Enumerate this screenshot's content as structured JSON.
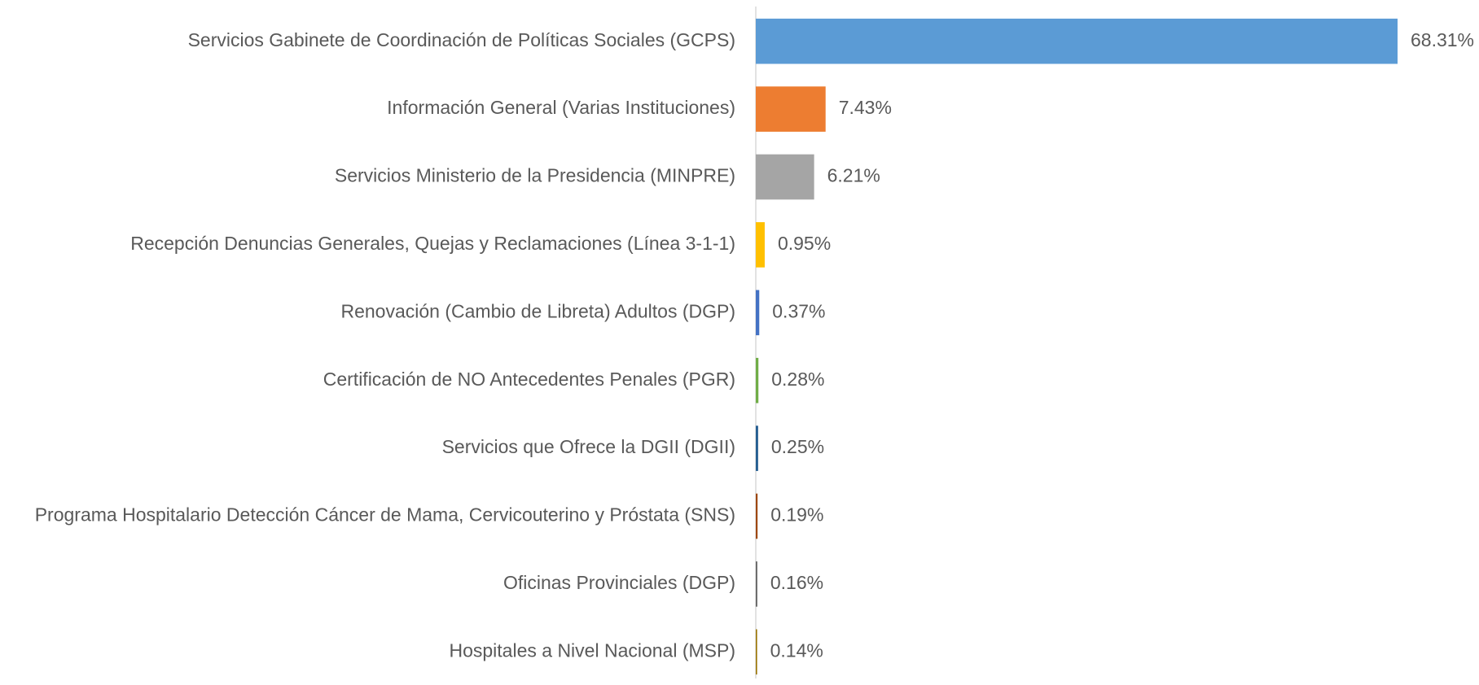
{
  "chart_data": {
    "type": "hbar",
    "categories": [
      "Servicios Gabinete de Coordinación de Políticas Sociales (GCPS)",
      "Información General (Varias Instituciones)",
      "Servicios Ministerio de la Presidencia (MINPRE)",
      "Recepción Denuncias Generales, Quejas y Reclamaciones (Línea 3-1-1)",
      "Renovación (Cambio de Libreta) Adultos (DGP)",
      "Certificación de NO Antecedentes Penales (PGR)",
      "Servicios que Ofrece la DGII (DGII)",
      "Programa Hospitalario Detección Cáncer de Mama, Cervicouterino y Próstata (SNS)",
      "Oficinas Provinciales (DGP)",
      "Hospitales a Nivel Nacional (MSP)"
    ],
    "values": [
      68.31,
      7.43,
      6.21,
      0.95,
      0.37,
      0.28,
      0.25,
      0.19,
      0.16,
      0.14
    ],
    "value_labels": [
      "68.31%",
      "7.43%",
      "6.21%",
      "0.95%",
      "0.37%",
      "0.28%",
      "0.25%",
      "0.19%",
      "0.16%",
      "0.14%"
    ],
    "colors": [
      "#5b9bd5",
      "#ed7d31",
      "#a5a5a5",
      "#ffc000",
      "#4472c4",
      "#70ad47",
      "#255e91",
      "#9e480e",
      "#636363",
      "#997300"
    ]
  }
}
